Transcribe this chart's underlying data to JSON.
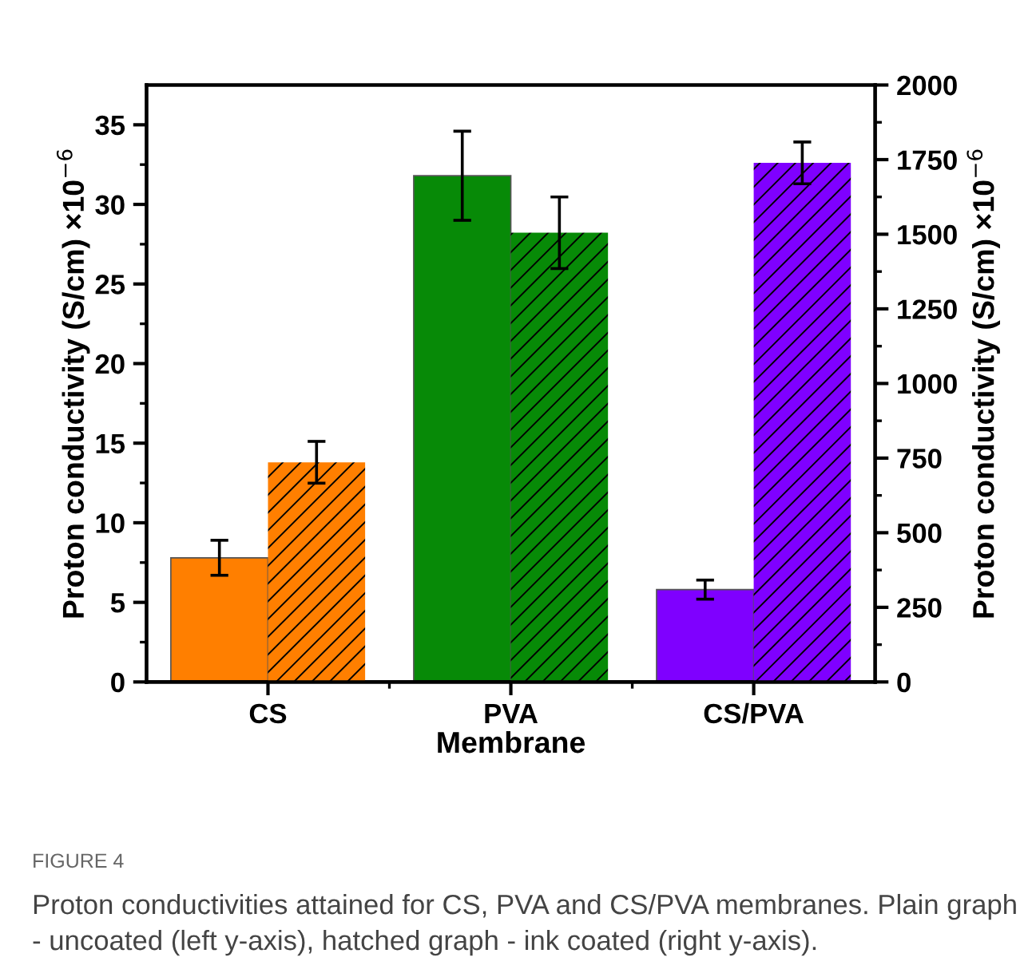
{
  "chart_data": {
    "type": "bar",
    "categories": [
      "CS",
      "PVA",
      "CS/PVA"
    ],
    "xlabel": "Membrane",
    "ylabel": "Proton conductivity (S/cm) ×10$^{−6}$",
    "y2label": "Proton conductivity (S/cm) ×10$^{−6}$",
    "series": [
      {
        "axis": "y",
        "colors": [
          "#ff7f00",
          "#078a07",
          "#7f00ff"
        ],
        "values": [
          7.8,
          31.8,
          5.8
        ],
        "errors": [
          1.1,
          2.8,
          0.6
        ]
      },
      {
        "axis": "y2",
        "colors": [
          "#ff7f00",
          "#078a07",
          "#7f00ff"
        ],
        "values": [
          736,
          1505,
          1739
        ],
        "errors": [
          70,
          120,
          70
        ]
      }
    ],
    "ylim": [
      0,
      37.5
    ],
    "yticks": [
      0,
      {
        "value": 2.5,
        "label": null
      },
      5,
      {
        "value": 7.5,
        "label": null
      },
      10,
      {
        "value": 12.5,
        "label": null
      },
      15,
      {
        "value": 17.5,
        "label": null
      },
      20,
      {
        "value": 22.5,
        "label": null
      },
      25,
      {
        "value": 27.5,
        "label": null
      },
      30,
      {
        "value": 32.5,
        "label": null
      },
      35
    ],
    "y2lim": [
      0,
      2000
    ],
    "y2ticks": [
      0,
      {
        "value": 125,
        "label": null
      },
      250,
      {
        "value": 375,
        "label": null
      },
      500,
      {
        "value": 625,
        "label": null
      },
      750,
      {
        "value": 875,
        "label": null
      },
      1000,
      {
        "value": 1125,
        "label": null
      },
      1250,
      {
        "value": 1375,
        "label": null
      },
      1500,
      {
        "value": 1625,
        "label": null
      },
      1750,
      {
        "value": 1875,
        "label": null
      },
      2000
    ],
    "annotations": [
      "FIGURE 4",
      "Proton conductivities attained for CS, PVA and CS/PVA membranes. Plain graph - uncoated (left y-axis), hatched graph - ink coated (right y-axis)."
    ]
  }
}
